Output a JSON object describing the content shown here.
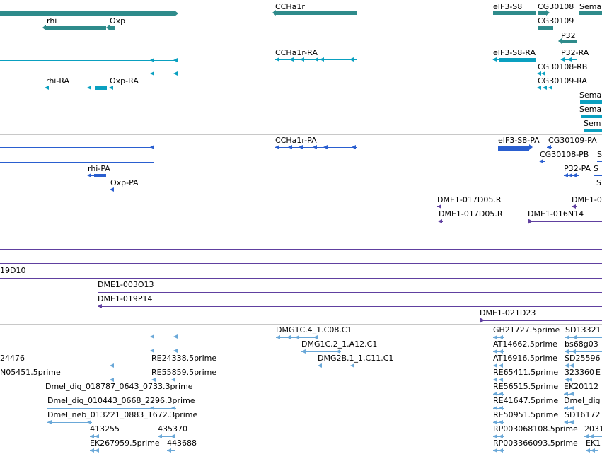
{
  "tracks": [
    {
      "name": "gene",
      "color": "#2e8b8b",
      "features": [
        {
          "label": "",
          "type": "gene"
        },
        {
          "label": "rhi",
          "type": "gene"
        },
        {
          "label": "Oxp",
          "type": "gene"
        },
        {
          "label": "CCHa1r",
          "type": "gene"
        },
        {
          "label": "eIF3-S8",
          "type": "gene"
        },
        {
          "label": "CG30108",
          "type": "gene"
        },
        {
          "label": "Sema",
          "type": "gene"
        },
        {
          "label": "CG30109",
          "type": "gene"
        },
        {
          "label": "P32",
          "type": "gene"
        }
      ]
    },
    {
      "name": "mRNA-cyan",
      "color": "#0aa0c0",
      "features": [
        {
          "label": "",
          "type": "mRNA"
        },
        {
          "label": "",
          "type": "mRNA"
        },
        {
          "label": "rhi-RA",
          "type": "mRNA"
        },
        {
          "label": "Oxp-RA",
          "type": "mRNA"
        },
        {
          "label": "CCHa1r-RA",
          "type": "mRNA"
        },
        {
          "label": "eIF3-S8-RA",
          "type": "mRNA"
        },
        {
          "label": "P32-RA",
          "type": "mRNA"
        },
        {
          "label": "CG30108-RB",
          "type": "mRNA"
        },
        {
          "label": "CG30109-RA",
          "type": "mRNA"
        },
        {
          "label": "Sema",
          "type": "mRNA"
        },
        {
          "label": "Sema",
          "type": "mRNA"
        },
        {
          "label": "Sem",
          "type": "mRNA"
        }
      ]
    },
    {
      "name": "mRNA-blue",
      "color": "#2a5fd0",
      "features": [
        {
          "label": "",
          "type": "transcript"
        },
        {
          "label": "",
          "type": "transcript"
        },
        {
          "label": "rhi-PA",
          "type": "transcript"
        },
        {
          "label": "Oxp-PA",
          "type": "transcript"
        },
        {
          "label": "CCHa1r-PA",
          "type": "transcript"
        },
        {
          "label": "eIF3-S8-PA",
          "type": "transcript"
        },
        {
          "label": "CG30109-PA",
          "type": "transcript"
        },
        {
          "label": "CG30108-PB",
          "type": "transcript"
        },
        {
          "label": "S",
          "type": "transcript"
        },
        {
          "label": "P32-PA",
          "type": "transcript"
        },
        {
          "label": "S",
          "type": "transcript"
        },
        {
          "label": "S",
          "type": "transcript"
        }
      ]
    },
    {
      "name": "clones-purple",
      "color": "#6040a0",
      "features": [
        {
          "label": "DME1-017D05.R",
          "type": "clone"
        },
        {
          "label": "DME1-0",
          "type": "clone"
        },
        {
          "label": "DME1-017D05.R",
          "type": "clone"
        },
        {
          "label": "DME1-016N14",
          "type": "clone"
        },
        {
          "label": "19D10",
          "type": "clone"
        },
        {
          "label": "DME1-003O13",
          "type": "clone"
        },
        {
          "label": "DME1-019P14",
          "type": "clone"
        },
        {
          "label": "DME1-021D23",
          "type": "clone"
        }
      ]
    },
    {
      "name": "est-lightblue",
      "color": "#6aa8d8",
      "features": [
        {
          "label": "DMG1C.4_1.C08.C1",
          "type": "est"
        },
        {
          "label": "GH21727.5prime",
          "type": "est"
        },
        {
          "label": "SD13321",
          "type": "est"
        },
        {
          "label": "DMG1C.2_1.A12.C1",
          "type": "est"
        },
        {
          "label": "24476",
          "type": "est"
        },
        {
          "label": "RE24338.5prime",
          "type": "est"
        },
        {
          "label": "AT14662.5prime",
          "type": "est"
        },
        {
          "label": "bs68g03",
          "type": "est"
        },
        {
          "label": "DMG2B.1_1.C11.C1",
          "type": "est"
        },
        {
          "label": "AT16916.5prime",
          "type": "est"
        },
        {
          "label": "SD25596",
          "type": "est"
        },
        {
          "label": "N05451.5prime",
          "type": "est"
        },
        {
          "label": "RE55859.5prime",
          "type": "est"
        },
        {
          "label": "RE65411.5prime",
          "type": "est"
        },
        {
          "label": "323360",
          "type": "est"
        },
        {
          "label": "E",
          "type": "est"
        },
        {
          "label": "Dmel_dig_018787_0643_0733.3prime",
          "type": "est"
        },
        {
          "label": "RE56515.5prime",
          "type": "est"
        },
        {
          "label": "EK20112",
          "type": "est"
        },
        {
          "label": "Dmel_dig_010443_0668_2296.3prime",
          "type": "est"
        },
        {
          "label": "RE41647.5prime",
          "type": "est"
        },
        {
          "label": "Dmel_dig",
          "type": "est"
        },
        {
          "label": "Dmel_neb_013221_0883_1672.3prime",
          "type": "est"
        },
        {
          "label": "RE50951.5prime",
          "type": "est"
        },
        {
          "label": "SD16172",
          "type": "est"
        },
        {
          "label": "413255",
          "type": "est"
        },
        {
          "label": "435370",
          "type": "est"
        },
        {
          "label": "RP003068108.5prime",
          "type": "est"
        },
        {
          "label": "2031",
          "type": "est"
        },
        {
          "label": "EK267959.5prime",
          "type": "est"
        },
        {
          "label": "443688",
          "type": "est"
        },
        {
          "label": "RP003366093.5prime",
          "type": "est"
        },
        {
          "label": "EK1",
          "type": "est"
        }
      ]
    }
  ]
}
